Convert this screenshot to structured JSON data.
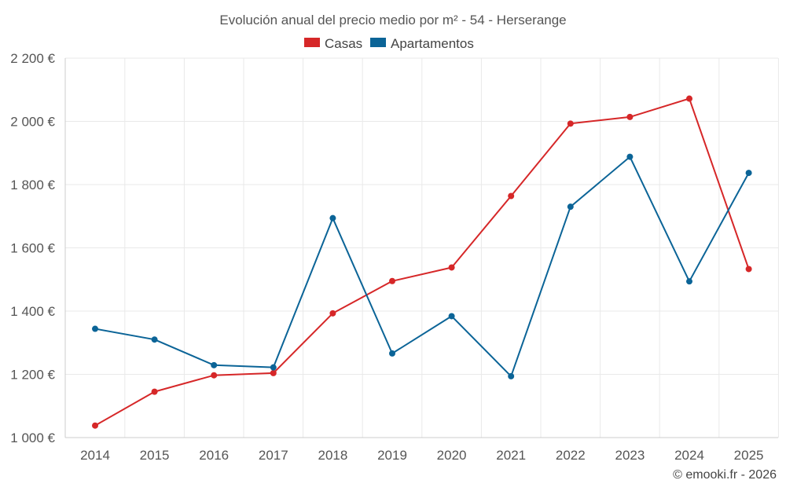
{
  "chart_data": {
    "type": "line",
    "title": "Evolución anual del precio medio por m² - 54 - Herserange",
    "categories": [
      "2014",
      "2015",
      "2016",
      "2017",
      "2018",
      "2019",
      "2020",
      "2021",
      "2022",
      "2023",
      "2024",
      "2025"
    ],
    "series": [
      {
        "name": "Casas",
        "color": "#d62728",
        "values": [
          1038,
          1145,
          1197,
          1204,
          1393,
          1495,
          1538,
          1764,
          1993,
          2014,
          2072,
          1533
        ]
      },
      {
        "name": "Apartamentos",
        "color": "#0b6497",
        "values": [
          1344,
          1310,
          1229,
          1222,
          1694,
          1266,
          1384,
          1194,
          1730,
          1888,
          1494,
          1837
        ]
      }
    ],
    "y_ticks": [
      1000,
      1200,
      1400,
      1600,
      1800,
      2000,
      2200
    ],
    "y_tick_labels": [
      "1 000 €",
      "1 200 €",
      "1 400 €",
      "1 600 €",
      "1 800 €",
      "2 000 €",
      "2 200 €"
    ],
    "ylim": [
      1000,
      2200
    ],
    "xlabel": "",
    "ylabel": "",
    "grid": true,
    "legend_position": "top-center"
  },
  "footer": {
    "credit": "© emooki.fr - 2026"
  }
}
